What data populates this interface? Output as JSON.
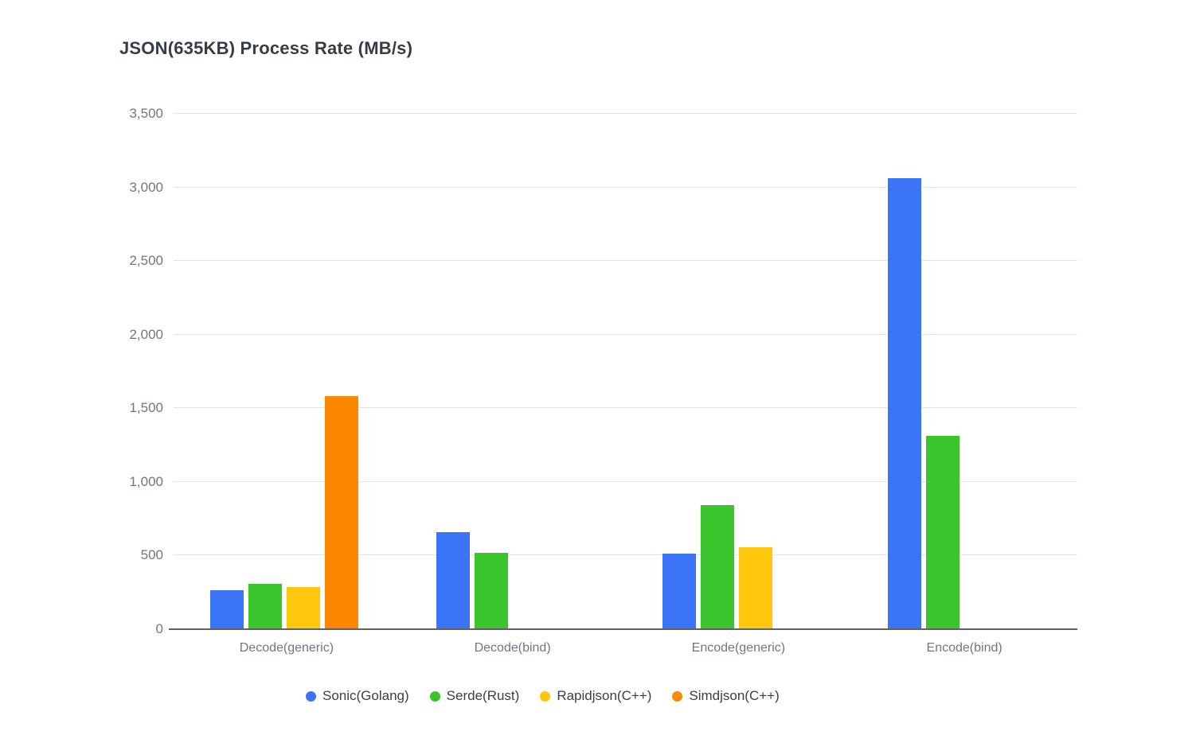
{
  "chart_data": {
    "type": "bar",
    "title": "JSON(635KB) Process Rate (MB/s)",
    "categories": [
      "Decode(generic)",
      "Decode(bind)",
      "Encode(generic)",
      "Encode(bind)"
    ],
    "series": [
      {
        "name": "Sonic(Golang)",
        "color": "#3b74f6",
        "values": [
          265,
          660,
          515,
          3065
        ]
      },
      {
        "name": "Serde(Rust)",
        "color": "#3bc52d",
        "values": [
          310,
          520,
          845,
          1310
        ]
      },
      {
        "name": "Rapidjson(C++)",
        "color": "#fec60d",
        "values": [
          285,
          null,
          555,
          null
        ]
      },
      {
        "name": "Simdjson(C++)",
        "color": "#fc8800",
        "values": [
          1585,
          null,
          null,
          null
        ]
      }
    ],
    "ylabel": "",
    "xlabel": "",
    "ylim": [
      0,
      3500
    ],
    "ytick_step": 500,
    "ytick_labels": [
      "0",
      "500",
      "1,000",
      "1,500",
      "2,000",
      "2,500",
      "3,000",
      "3,500"
    ],
    "grid": true,
    "legend_position": "bottom",
    "colors": {
      "title_text": "#373d47",
      "axis_text": "#6f7683",
      "legend_text": "#3a4047",
      "gridline": "#e3e3e3",
      "baseline": "#616161",
      "background": "#ffffff"
    }
  }
}
